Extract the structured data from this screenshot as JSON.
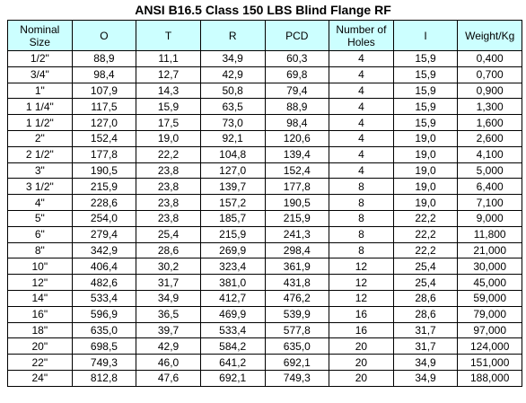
{
  "title": "ANSI B16.5 Class 150 LBS Blind Flange RF",
  "table": {
    "header": [
      "Nominal Size",
      "O",
      "T",
      "R",
      "PCD",
      "Number of Holes",
      "I",
      "Weight/Kg"
    ],
    "rows": [
      [
        "1/2\"",
        "88,9",
        "11,1",
        "34,9",
        "60,3",
        "4",
        "15,9",
        "0,400"
      ],
      [
        "3/4\"",
        "98,4",
        "12,7",
        "42,9",
        "69,8",
        "4",
        "15,9",
        "0,700"
      ],
      [
        "1\"",
        "107,9",
        "14,3",
        "50,8",
        "79,4",
        "4",
        "15,9",
        "0,900"
      ],
      [
        "1 1/4\"",
        "117,5",
        "15,9",
        "63,5",
        "88,9",
        "4",
        "15,9",
        "1,300"
      ],
      [
        "1 1/2\"",
        "127,0",
        "17,5",
        "73,0",
        "98,4",
        "4",
        "15,9",
        "1,600"
      ],
      [
        "2\"",
        "152,4",
        "19,0",
        "92,1",
        "120,6",
        "4",
        "19,0",
        "2,600"
      ],
      [
        "2 1/2\"",
        "177,8",
        "22,2",
        "104,8",
        "139,4",
        "4",
        "19,0",
        "4,100"
      ],
      [
        "3\"",
        "190,5",
        "23,8",
        "127,0",
        "152,4",
        "4",
        "19,0",
        "5,000"
      ],
      [
        "3 1/2\"",
        "215,9",
        "23,8",
        "139,7",
        "177,8",
        "8",
        "19,0",
        "6,400"
      ],
      [
        "4\"",
        "228,6",
        "23,8",
        "157,2",
        "190,5",
        "8",
        "19,0",
        "7,100"
      ],
      [
        "5\"",
        "254,0",
        "23,8",
        "185,7",
        "215,9",
        "8",
        "22,2",
        "9,000"
      ],
      [
        "6\"",
        "279,4",
        "25,4",
        "215,9",
        "241,3",
        "8",
        "22,2",
        "11,800"
      ],
      [
        "8\"",
        "342,9",
        "28,6",
        "269,9",
        "298,4",
        "8",
        "22,2",
        "21,000"
      ],
      [
        "10\"",
        "406,4",
        "30,2",
        "323,4",
        "361,9",
        "12",
        "25,4",
        "30,000"
      ],
      [
        "12\"",
        "482,6",
        "31,7",
        "381,0",
        "431,8",
        "12",
        "25,4",
        "45,000"
      ],
      [
        "14\"",
        "533,4",
        "34,9",
        "412,7",
        "476,2",
        "12",
        "28,6",
        "59,000"
      ],
      [
        "16\"",
        "596,9",
        "36,5",
        "469,9",
        "539,9",
        "16",
        "28,6",
        "79,000"
      ],
      [
        "18\"",
        "635,0",
        "39,7",
        "533,4",
        "577,8",
        "16",
        "31,7",
        "97,000"
      ],
      [
        "20\"",
        "698,5",
        "42,9",
        "584,2",
        "635,0",
        "20",
        "31,7",
        "124,000"
      ],
      [
        "22\"",
        "749,3",
        "46,0",
        "641,2",
        "692,1",
        "20",
        "34,9",
        "151,000"
      ],
      [
        "24\"",
        "812,8",
        "47,6",
        "692,1",
        "749,3",
        "20",
        "34,9",
        "188,000"
      ]
    ]
  }
}
